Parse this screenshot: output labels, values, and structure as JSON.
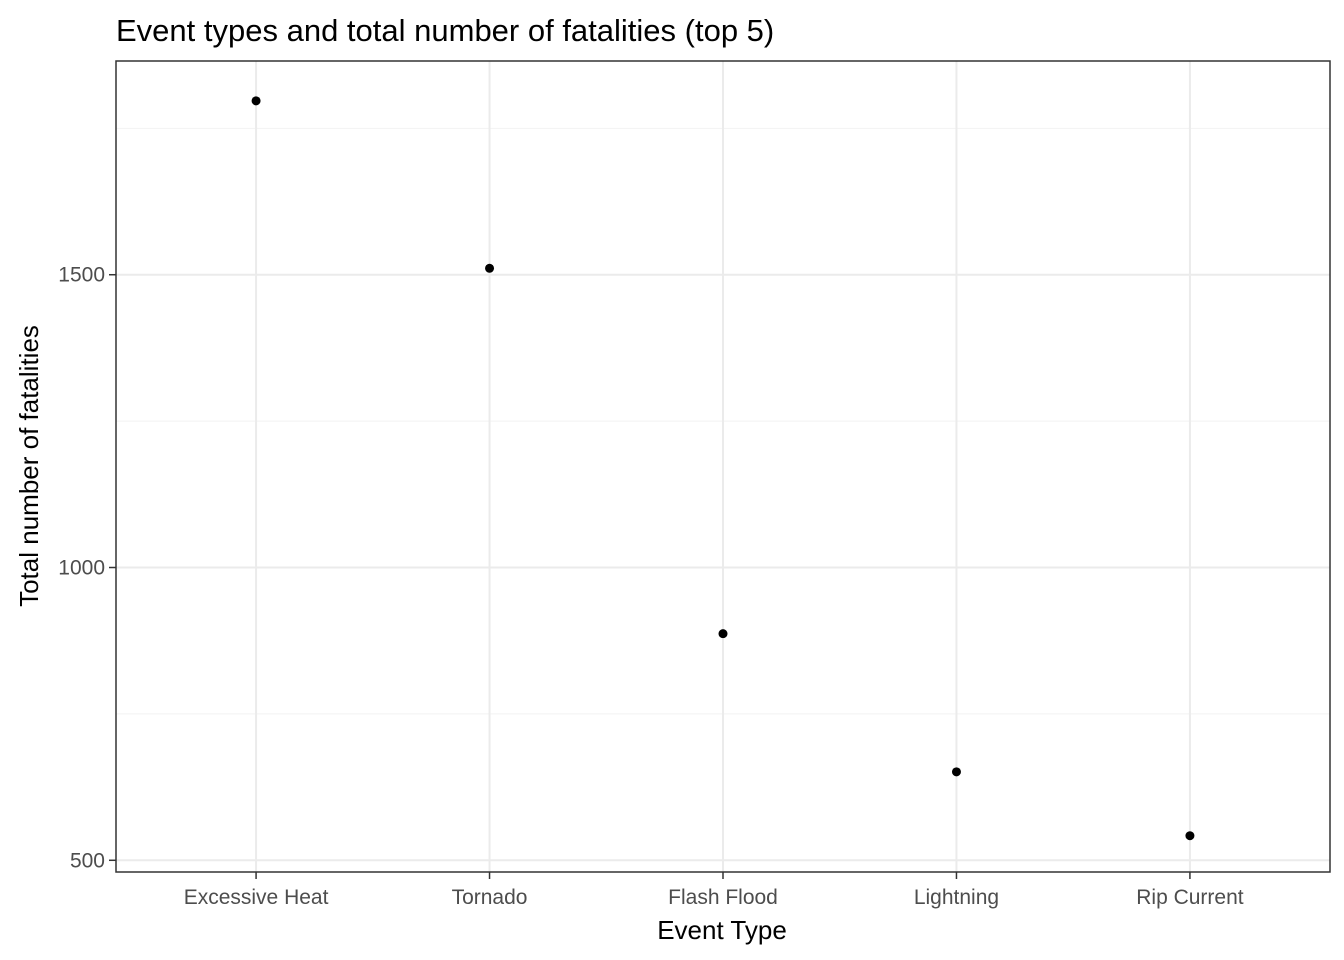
{
  "chart_data": {
    "type": "scatter",
    "title": "Event types and total number of fatalities (top 5)",
    "xlabel": "Event Type",
    "ylabel": "Total number of fatalities",
    "categories": [
      "Excessive Heat",
      "Tornado",
      "Flash Flood",
      "Lightning",
      "Rip Current"
    ],
    "values": [
      1797,
      1511,
      887,
      651,
      542
    ],
    "ylim": [
      480,
      1865
    ],
    "yticks": [
      500,
      1000,
      1500
    ],
    "yticks_minor": [
      750,
      1250,
      1750
    ],
    "grid": true,
    "point_color": "#000000"
  }
}
